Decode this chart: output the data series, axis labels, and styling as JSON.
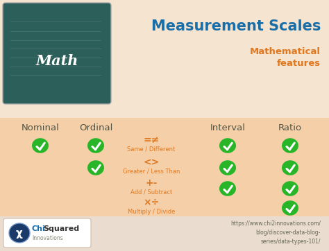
{
  "title": "Measurement Scales",
  "subtitle": "Mathematical\nfeatures",
  "bg_top": "#f5e4d0",
  "bg_table": "#f5cfa8",
  "bg_bottom": "#eaddd0",
  "title_color": "#1a6ea8",
  "subtitle_color": "#e07820",
  "col_headers": [
    "Nominal",
    "Ordinal",
    "Interval",
    "Ratio"
  ],
  "col_header_color": "#555544",
  "operations": [
    {
      "symbol": "=≠",
      "label": "Same / Different"
    },
    {
      "symbol": "<>",
      "label": "Greater / Less Than"
    },
    {
      "symbol": "+-",
      "label": "Add / Subtract"
    },
    {
      "symbol": "×÷",
      "label": "Multiply / Divide"
    }
  ],
  "op_symbol_color": "#e07820",
  "op_label_color": "#e07820",
  "checkmark_color": "#28b528",
  "check_data": [
    [
      true,
      true,
      true,
      true
    ],
    [
      false,
      true,
      true,
      true
    ],
    [
      false,
      false,
      true,
      true
    ],
    [
      false,
      false,
      false,
      true
    ]
  ],
  "url_text": "https://www.chi2innovations.com/\nblog/discover-data-blog-\nseries/data-types-101/",
  "url_color": "#666655",
  "math_box_color": "#2d5f5a",
  "math_box_edge": "#aaaaaa"
}
